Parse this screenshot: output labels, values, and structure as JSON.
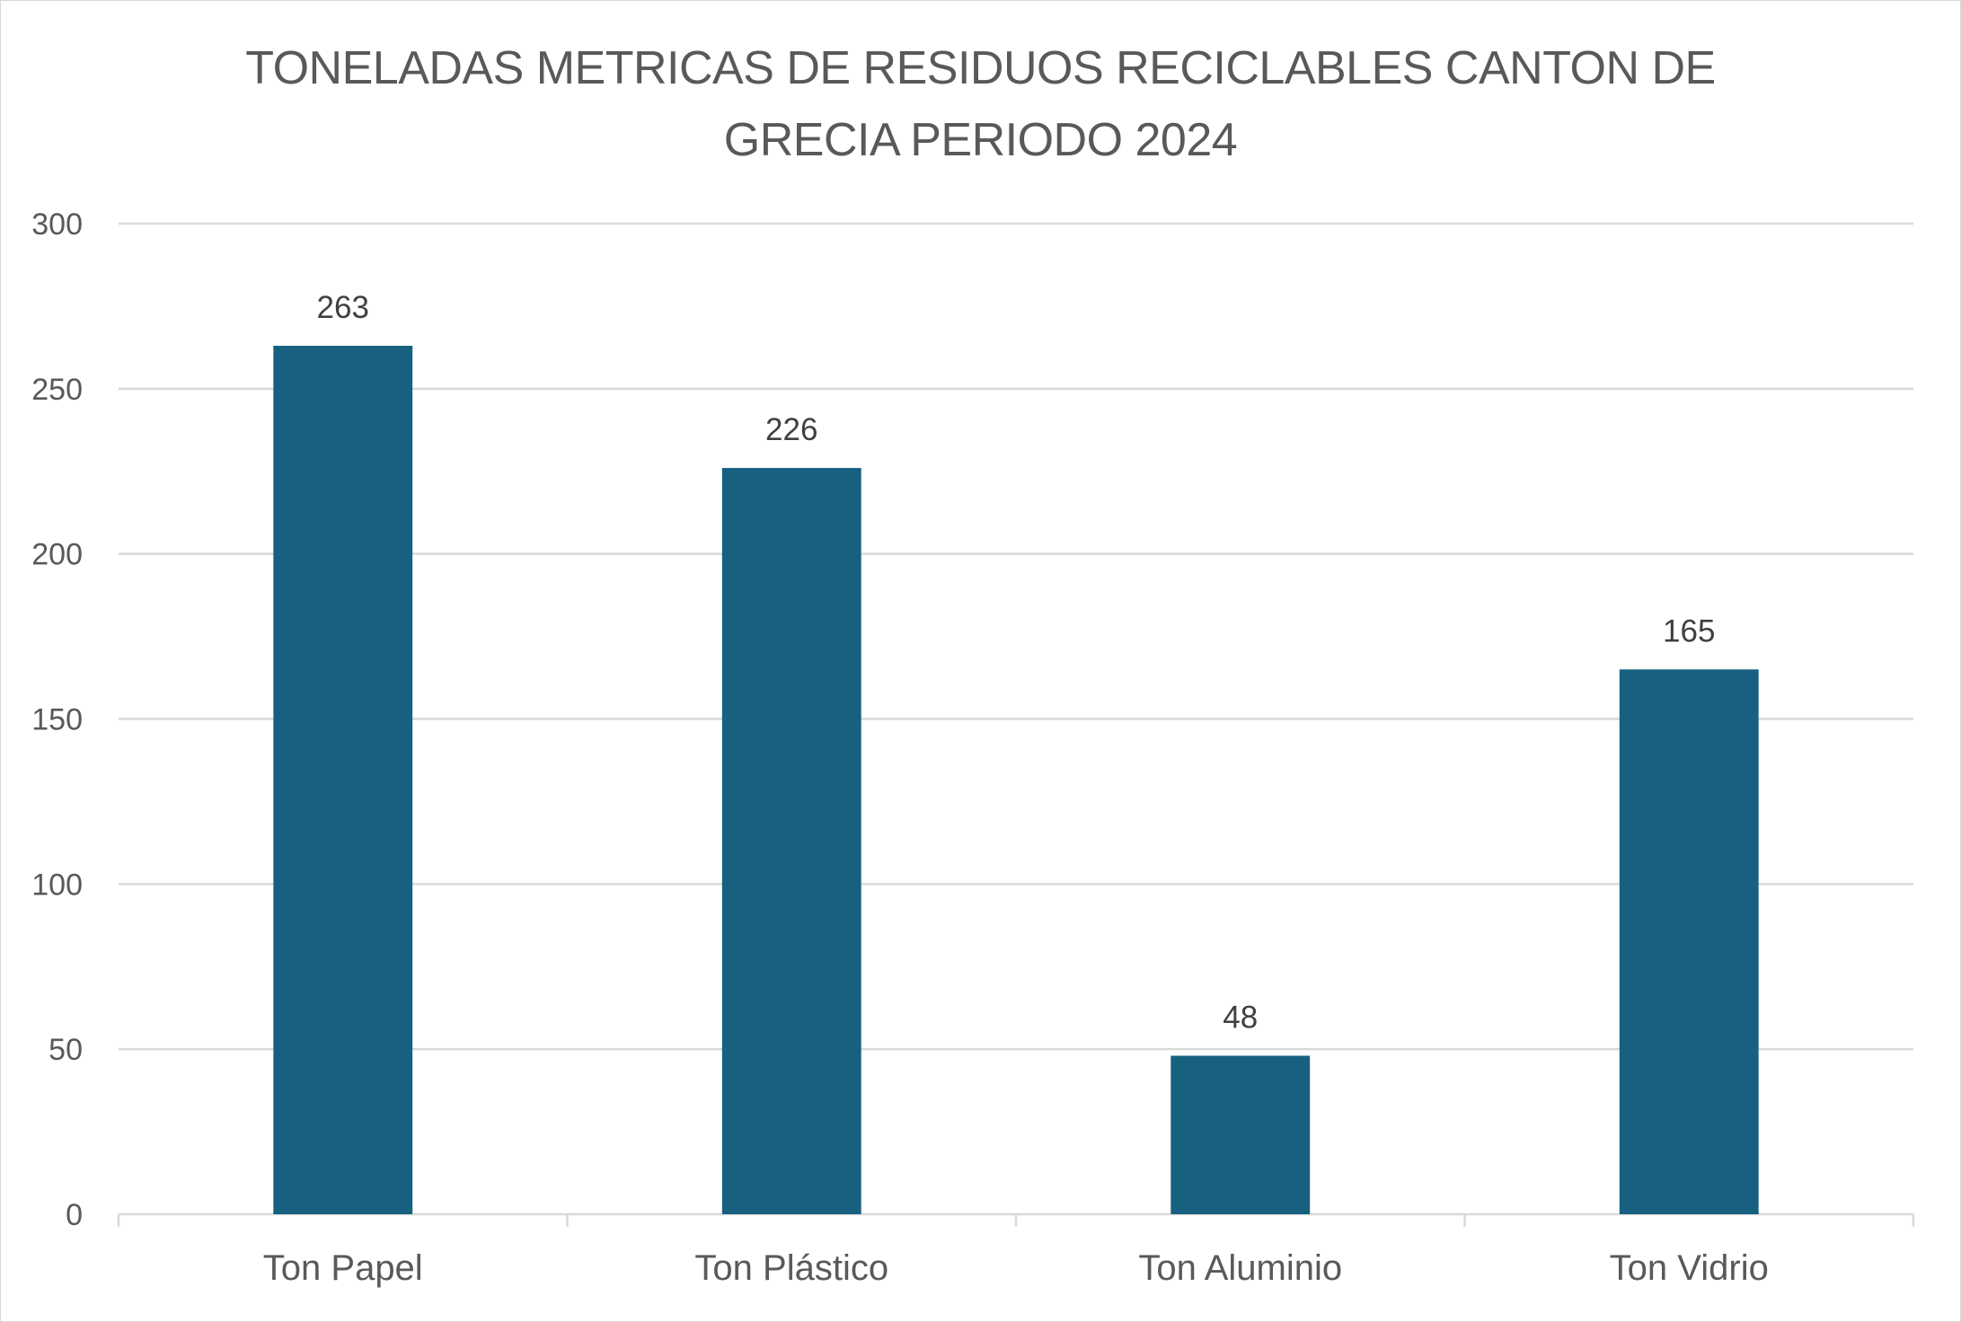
{
  "chart_data": {
    "type": "bar",
    "title_lines": [
      "TONELADAS METRICAS DE RESIDUOS RECICLABLES CANTON DE",
      "GRECIA PERIODO 2024"
    ],
    "categories": [
      "Ton Papel",
      "Ton Plástico",
      "Ton Aluminio",
      "Ton Vidrio"
    ],
    "values": [
      263,
      226,
      48,
      165
    ],
    "data_labels": [
      "263",
      "226",
      "48",
      "165"
    ],
    "ylim": [
      0,
      300
    ],
    "yticks": [
      0,
      50,
      100,
      150,
      200,
      250,
      300
    ],
    "ytick_labels": [
      "0",
      "50",
      "100",
      "150",
      "200",
      "250",
      "300"
    ],
    "grid": true,
    "legend": "none",
    "bar_color": "#17607f",
    "grid_color": "#d9d9d9",
    "axis_color": "#d9d9d9"
  }
}
